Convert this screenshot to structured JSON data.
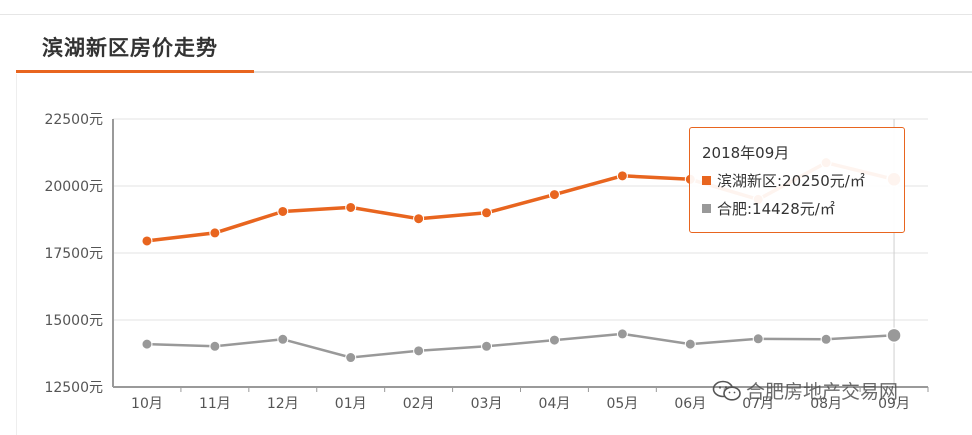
{
  "header": {
    "title": "滨湖新区房价走势"
  },
  "chart_data": {
    "type": "line",
    "categories": [
      "10月",
      "11月",
      "12月",
      "01月",
      "02月",
      "03月",
      "04月",
      "05月",
      "06月",
      "07月",
      "08月",
      "09月"
    ],
    "y_tick_labels": [
      "22500元",
      "20000元",
      "17500元",
      "15000元",
      "12500元"
    ],
    "y_ticks": [
      22500,
      20000,
      17500,
      15000,
      12500
    ],
    "ylim": [
      12500,
      22500
    ],
    "grid": true,
    "series": [
      {
        "name": "滨湖新区",
        "color": "#e8651f",
        "values": [
          17950,
          18250,
          19050,
          19200,
          18780,
          19000,
          19680,
          20380,
          20250,
          19500,
          20870,
          20250
        ]
      },
      {
        "name": "合肥",
        "color": "#999999",
        "values": [
          14100,
          14020,
          14280,
          13600,
          13850,
          14020,
          14250,
          14480,
          14100,
          14300,
          14280,
          14428
        ]
      }
    ]
  },
  "tooltip": {
    "title": "2018年09月",
    "rows": [
      {
        "label": "滨湖新区:20250元/㎡",
        "color": "#e8651f"
      },
      {
        "label": "合肥:14428元/㎡",
        "color": "#999999"
      }
    ]
  },
  "watermark": {
    "text": "合肥房地产交易网",
    "icon": "wechat-icon"
  }
}
